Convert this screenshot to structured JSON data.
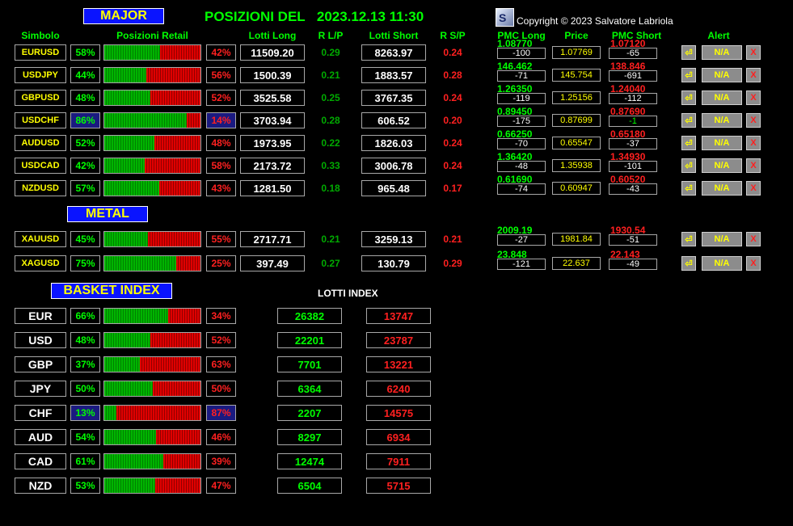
{
  "title_prefix": "POSIZIONI DEL",
  "datetime": "2023.12.13 11:30",
  "copyright": "Copyright © 2023 Salvatore Labriola",
  "banners": {
    "major": "MAJOR",
    "metal": "METAL",
    "basket": "BASKET INDEX",
    "lotti_index": "LOTTI INDEX"
  },
  "headers": {
    "simbolo": "Simbolo",
    "posizioni": "Posizioni Retail",
    "lotti_long": "Lotti Long",
    "r_lp": "R L/P",
    "lotti_short": "Lotti Short",
    "r_sp": "R S/P",
    "pmc_long": "PMC Long",
    "price": "Price",
    "pmc_short": "PMC Short",
    "alert": "Alert"
  },
  "alert_labels": {
    "bell": "⏎",
    "na": "N/A",
    "x": "X"
  },
  "colors": {
    "long": "#00ff00",
    "short": "#ff2020",
    "symbol": "#ffff00",
    "banner_bg": "#0a14ff",
    "highlight": "#1a1a80"
  },
  "pairs": [
    {
      "symbol": "EURUSD",
      "long_pct": "58%",
      "short_pct": "42%",
      "long_frac": 0.58,
      "lots_long": "11509.20",
      "rlp": "0.29",
      "lots_short": "8263.97",
      "rsp": "0.24",
      "pmc_long": "1.08770",
      "pmc_long_d": "-100",
      "price": "1.07769",
      "pmc_short": "1.07120",
      "pmc_short_d": "-65",
      "hl": false
    },
    {
      "symbol": "USDJPY",
      "long_pct": "44%",
      "short_pct": "56%",
      "long_frac": 0.44,
      "lots_long": "1500.39",
      "rlp": "0.21",
      "lots_short": "1883.57",
      "rsp": "0.28",
      "pmc_long": "146.462",
      "pmc_long_d": "-71",
      "price": "145.754",
      "pmc_short": "138.846",
      "pmc_short_d": "-691",
      "hl": false
    },
    {
      "symbol": "GBPUSD",
      "long_pct": "48%",
      "short_pct": "52%",
      "long_frac": 0.48,
      "lots_long": "3525.58",
      "rlp": "0.25",
      "lots_short": "3767.35",
      "rsp": "0.24",
      "pmc_long": "1.26350",
      "pmc_long_d": "-119",
      "price": "1.25156",
      "pmc_short": "1.24040",
      "pmc_short_d": "-112",
      "hl": false
    },
    {
      "symbol": "USDCHF",
      "long_pct": "86%",
      "short_pct": "14%",
      "long_frac": 0.86,
      "lots_long": "3703.94",
      "rlp": "0.28",
      "lots_short": "606.52",
      "rsp": "0.20",
      "pmc_long": "0.89450",
      "pmc_long_d": "-175",
      "price": "0.87699",
      "pmc_short": "0.87690",
      "pmc_short_d": "-1",
      "hl": true
    },
    {
      "symbol": "AUDUSD",
      "long_pct": "52%",
      "short_pct": "48%",
      "long_frac": 0.52,
      "lots_long": "1973.95",
      "rlp": "0.22",
      "lots_short": "1826.03",
      "rsp": "0.24",
      "pmc_long": "0.66250",
      "pmc_long_d": "-70",
      "price": "0.65547",
      "pmc_short": "0.65180",
      "pmc_short_d": "-37",
      "hl": false
    },
    {
      "symbol": "USDCAD",
      "long_pct": "42%",
      "short_pct": "58%",
      "long_frac": 0.42,
      "lots_long": "2173.72",
      "rlp": "0.33",
      "lots_short": "3006.78",
      "rsp": "0.24",
      "pmc_long": "1.36420",
      "pmc_long_d": "-48",
      "price": "1.35938",
      "pmc_short": "1.34930",
      "pmc_short_d": "-101",
      "hl": false
    },
    {
      "symbol": "NZDUSD",
      "long_pct": "57%",
      "short_pct": "43%",
      "long_frac": 0.57,
      "lots_long": "1281.50",
      "rlp": "0.18",
      "lots_short": "965.48",
      "rsp": "0.17",
      "pmc_long": "0.61690",
      "pmc_long_d": "-74",
      "price": "0.60947",
      "pmc_short": "0.60520",
      "pmc_short_d": "-43",
      "hl": false
    }
  ],
  "metals": [
    {
      "symbol": "XAUUSD",
      "long_pct": "45%",
      "short_pct": "55%",
      "long_frac": 0.45,
      "lots_long": "2717.71",
      "rlp": "0.21",
      "lots_short": "3259.13",
      "rsp": "0.21",
      "pmc_long": "2009.19",
      "pmc_long_d": "-27",
      "price": "1981.84",
      "pmc_short": "1930.54",
      "pmc_short_d": "-51",
      "hl": false
    },
    {
      "symbol": "XAGUSD",
      "long_pct": "75%",
      "short_pct": "25%",
      "long_frac": 0.75,
      "lots_long": "397.49",
      "rlp": "0.27",
      "lots_short": "130.79",
      "rsp": "0.29",
      "pmc_long": "23.848",
      "pmc_long_d": "-121",
      "price": "22.637",
      "pmc_short": "22.143",
      "pmc_short_d": "-49",
      "hl": false
    }
  ],
  "basket": [
    {
      "symbol": "EUR",
      "long_pct": "66%",
      "short_pct": "34%",
      "long_frac": 0.66,
      "lots_long": "26382",
      "lots_short": "13747",
      "hl": false
    },
    {
      "symbol": "USD",
      "long_pct": "48%",
      "short_pct": "52%",
      "long_frac": 0.48,
      "lots_long": "22201",
      "lots_short": "23787",
      "hl": false
    },
    {
      "symbol": "GBP",
      "long_pct": "37%",
      "short_pct": "63%",
      "long_frac": 0.37,
      "lots_long": "7701",
      "lots_short": "13221",
      "hl": false
    },
    {
      "symbol": "JPY",
      "long_pct": "50%",
      "short_pct": "50%",
      "long_frac": 0.5,
      "lots_long": "6364",
      "lots_short": "6240",
      "hl": false
    },
    {
      "symbol": "CHF",
      "long_pct": "13%",
      "short_pct": "87%",
      "long_frac": 0.13,
      "lots_long": "2207",
      "lots_short": "14575",
      "hl": true
    },
    {
      "symbol": "AUD",
      "long_pct": "54%",
      "short_pct": "46%",
      "long_frac": 0.54,
      "lots_long": "8297",
      "lots_short": "6934",
      "hl": false
    },
    {
      "symbol": "CAD",
      "long_pct": "61%",
      "short_pct": "39%",
      "long_frac": 0.61,
      "lots_long": "12474",
      "lots_short": "7911",
      "hl": false
    },
    {
      "symbol": "NZD",
      "long_pct": "53%",
      "short_pct": "47%",
      "long_frac": 0.53,
      "lots_long": "6504",
      "lots_short": "5715",
      "hl": false
    }
  ]
}
